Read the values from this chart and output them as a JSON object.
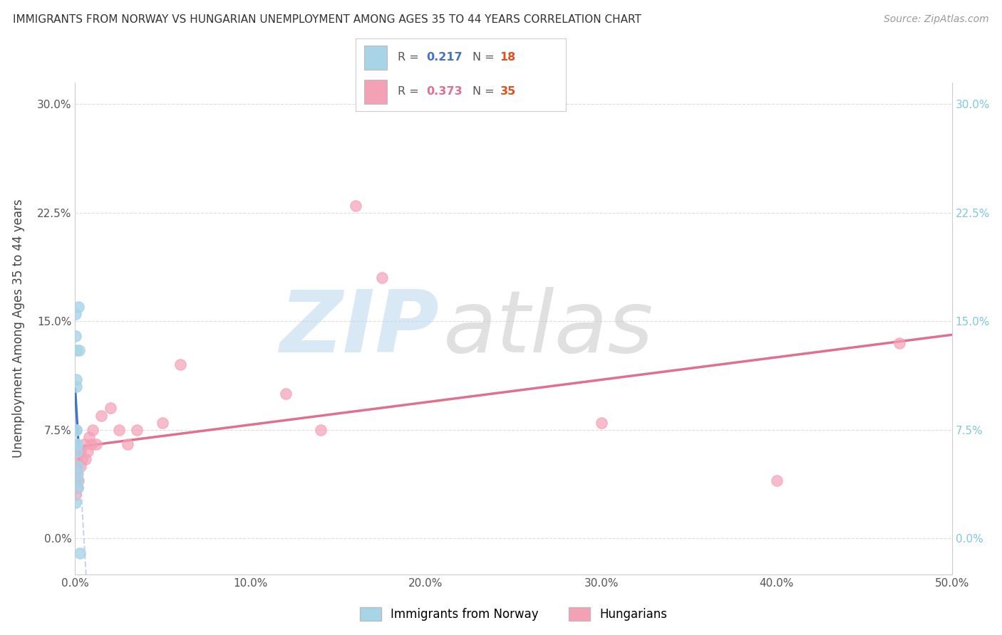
{
  "title": "IMMIGRANTS FROM NORWAY VS HUNGARIAN UNEMPLOYMENT AMONG AGES 35 TO 44 YEARS CORRELATION CHART",
  "source": "Source: ZipAtlas.com",
  "ylabel": "Unemployment Among Ages 35 to 44 years",
  "xlim": [
    0.0,
    0.5
  ],
  "ylim": [
    -0.025,
    0.315
  ],
  "xticks": [
    0.0,
    0.1,
    0.2,
    0.3,
    0.4,
    0.5
  ],
  "xticklabels": [
    "0.0%",
    "10.0%",
    "20.0%",
    "30.0%",
    "40.0%",
    "50.0%"
  ],
  "yticks": [
    0.0,
    0.075,
    0.15,
    0.225,
    0.3
  ],
  "yticklabels": [
    "0.0%",
    "7.5%",
    "15.0%",
    "22.5%",
    "30.0%"
  ],
  "norway_color": "#a8d4e8",
  "hungarian_color": "#f4a0b5",
  "norway_line_color": "#4472c4",
  "norwegian_dash_color": "#a0b8d8",
  "hungarian_line_color": "#e07090",
  "background_color": "#ffffff",
  "grid_color": "#dddddd",
  "watermark_zip": "ZIP",
  "watermark_atlas": "atlas",
  "R_norway": 0.217,
  "N_norway": 18,
  "R_hungarian": 0.373,
  "N_hungarian": 35,
  "norway_x": [
    0.0002,
    0.0003,
    0.0004,
    0.0005,
    0.0005,
    0.0006,
    0.0007,
    0.0008,
    0.0009,
    0.001,
    0.0012,
    0.0013,
    0.0014,
    0.0015,
    0.0016,
    0.002,
    0.0022,
    0.0025
  ],
  "norway_y": [
    0.025,
    0.155,
    0.14,
    0.13,
    0.11,
    0.105,
    0.075,
    0.075,
    0.065,
    0.06,
    0.065,
    0.05,
    0.045,
    0.04,
    0.035,
    0.16,
    0.13,
    -0.01
  ],
  "hungarian_x": [
    0.0002,
    0.0003,
    0.0005,
    0.0006,
    0.0007,
    0.001,
    0.001,
    0.0012,
    0.0014,
    0.002,
    0.002,
    0.003,
    0.003,
    0.004,
    0.005,
    0.006,
    0.007,
    0.008,
    0.009,
    0.01,
    0.012,
    0.015,
    0.02,
    0.025,
    0.03,
    0.035,
    0.05,
    0.06,
    0.12,
    0.14,
    0.16,
    0.175,
    0.3,
    0.4,
    0.47
  ],
  "hungarian_y": [
    0.04,
    0.03,
    0.045,
    0.04,
    0.05,
    0.055,
    0.04,
    0.045,
    0.035,
    0.06,
    0.04,
    0.05,
    0.06,
    0.055,
    0.065,
    0.055,
    0.06,
    0.07,
    0.065,
    0.075,
    0.065,
    0.085,
    0.09,
    0.075,
    0.065,
    0.075,
    0.08,
    0.12,
    0.1,
    0.075,
    0.23,
    0.18,
    0.08,
    0.04,
    0.135
  ]
}
